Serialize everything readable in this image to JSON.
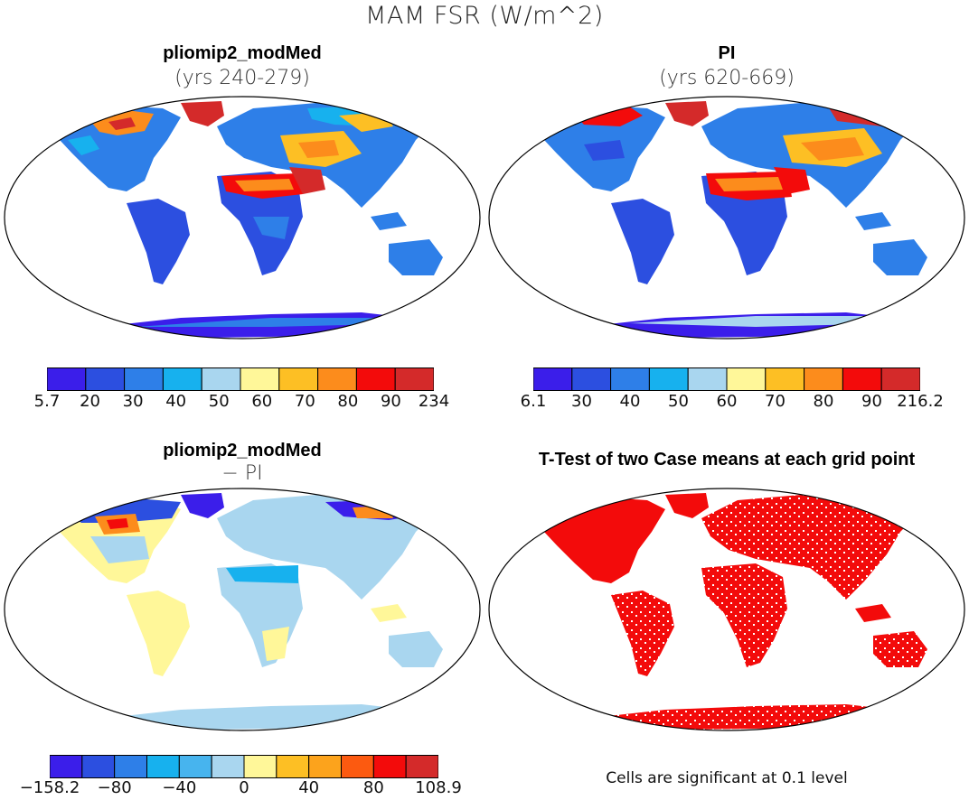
{
  "title": "MAM FSR (W/m^2)",
  "panels": {
    "top_left": {
      "title": "pliomip2_modMed",
      "subtitle": "(yrs 240-279)"
    },
    "top_right": {
      "title": "PI",
      "subtitle": "(yrs 620-669)"
    },
    "bottom_left": {
      "title": "pliomip2_modMed",
      "subtitle": "− PI"
    },
    "bottom_right": {
      "title": "T-Test of two Case means at each grid point",
      "note": "Cells are significant at 0.1 level"
    }
  },
  "colorbars": {
    "top_left": {
      "colors": [
        "#3b1eea",
        "#2c4fe0",
        "#2e7fe8",
        "#17b1ee",
        "#a9d6ef",
        "#fff799",
        "#fdbf24",
        "#fc8c1c",
        "#f30b0b",
        "#d42a2a"
      ],
      "labels": [
        "5.7",
        "20",
        "30",
        "40",
        "50",
        "60",
        "70",
        "80",
        "90",
        "234"
      ]
    },
    "top_right": {
      "colors": [
        "#3b1eea",
        "#2c4fe0",
        "#2e7fe8",
        "#17b1ee",
        "#a9d6ef",
        "#fff799",
        "#fdbf24",
        "#fc8c1c",
        "#f30b0b",
        "#d42a2a"
      ],
      "labels": [
        "6.1",
        "30",
        "40",
        "50",
        "60",
        "70",
        "80",
        "90",
        "216.2"
      ]
    },
    "bottom_left": {
      "colors": [
        "#3b1eea",
        "#2c4fe0",
        "#2e7fe8",
        "#17b1ee",
        "#47b4ee",
        "#a9d6ef",
        "#fff799",
        "#fdbf24",
        "#fca31c",
        "#fc5a10",
        "#f30b0b",
        "#d42a2a"
      ],
      "labels": [
        "−158.2",
        "−80",
        "−40",
        "0",
        "40",
        "80",
        "108.9"
      ]
    }
  }
}
